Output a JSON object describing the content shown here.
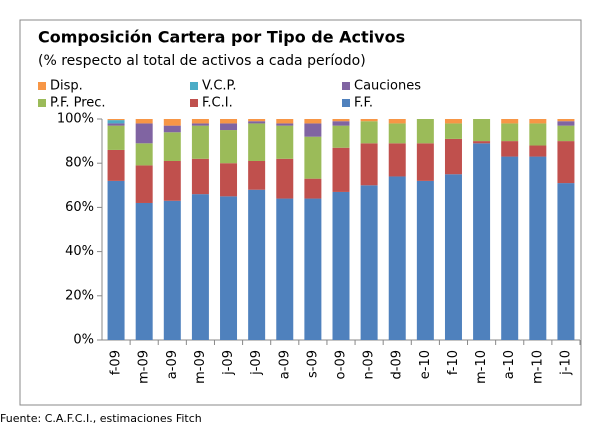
{
  "chart_data": {
    "type": "stacked_bar",
    "title": "Composición Cartera por Tipo de Activos",
    "subtitle": "(% respecto al total de activos a cada período)",
    "source": "Fuente: C.A.F.C.I.,   estimaciones Fitch",
    "categories": [
      "f-09",
      "m-09",
      "a-09",
      "m-09",
      "j-09",
      "j-09",
      "a-09",
      "s-09",
      "o-09",
      "n-09",
      "d-09",
      "e-10",
      "f-10",
      "m-10",
      "a-10",
      "m-10",
      "j-10"
    ],
    "series": [
      {
        "name": "F.F.",
        "color": "#4f81bd",
        "values": [
          72,
          62,
          63,
          66,
          65,
          68,
          64,
          64,
          67,
          70,
          74,
          72,
          75,
          89,
          83,
          83,
          71
        ]
      },
      {
        "name": "F.C.I.",
        "color": "#c0504d",
        "values": [
          14,
          17,
          18,
          16,
          15,
          13,
          18,
          9,
          20,
          19,
          15,
          17,
          16,
          1,
          7,
          5,
          19
        ]
      },
      {
        "name": "P.F. Prec.",
        "color": "#9bbb59",
        "values": [
          11,
          10,
          13,
          15,
          15,
          17,
          15,
          19,
          10,
          10,
          9,
          11,
          7,
          10,
          8,
          10,
          7
        ]
      },
      {
        "name": "Cauciones",
        "color": "#8064a2",
        "values": [
          1,
          9,
          3,
          1,
          3,
          1,
          1,
          6,
          2,
          0,
          0,
          0,
          0,
          0,
          0,
          0,
          2
        ]
      },
      {
        "name": "V.C.P.",
        "color": "#4bacc6",
        "values": [
          1.5,
          0,
          0,
          0,
          0,
          0,
          0,
          0,
          0,
          0,
          0,
          0,
          0,
          0,
          0,
          0,
          0
        ]
      },
      {
        "name": "Disp.",
        "color": "#f79646",
        "values": [
          0.5,
          2,
          3,
          2,
          2,
          1,
          2,
          2,
          1,
          1,
          2,
          0,
          2,
          0,
          2,
          2,
          1
        ]
      }
    ],
    "ylim": [
      0,
      100
    ],
    "yticks": [
      {
        "value": 0,
        "label": "0%"
      },
      {
        "value": 20,
        "label": "20%"
      },
      {
        "value": 40,
        "label": "40%"
      },
      {
        "value": 60,
        "label": "60%"
      },
      {
        "value": 80,
        "label": "80%"
      },
      {
        "value": 100,
        "label": "100%"
      }
    ],
    "grid": false
  }
}
